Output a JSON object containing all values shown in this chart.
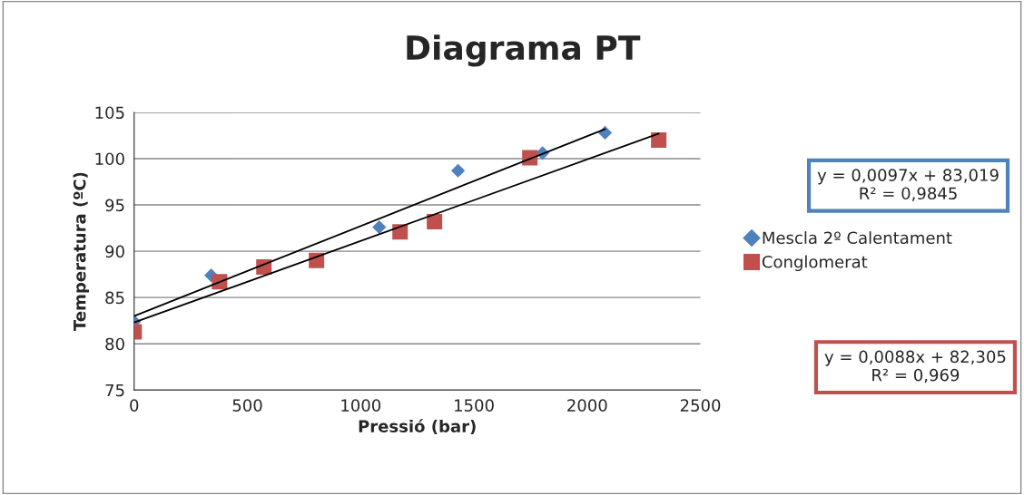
{
  "chart_data": {
    "type": "scatter",
    "title": "Diagrama PT",
    "xlabel": "Pressió (bar)",
    "ylabel": "Temperatura (ºC)",
    "xlim": [
      0,
      2500
    ],
    "xticks": [
      0,
      500,
      1000,
      1500,
      2000,
      2500
    ],
    "ylim": [
      75,
      105
    ],
    "yticks": [
      75,
      80,
      85,
      90,
      95,
      100,
      105
    ],
    "grid": "y",
    "legend": "right",
    "series": [
      {
        "name": "Mescla 2º Calentament",
        "color": "#4f81bd",
        "marker": "diamond",
        "x": [
          0,
          340,
          580,
          1082,
          1430,
          1803,
          2079
        ],
        "values": [
          82.4,
          87.4,
          null,
          92.6,
          98.7,
          100.6,
          102.8
        ]
      },
      {
        "name": "Conglomerat",
        "color": "#c0504d",
        "marker": "square",
        "x": [
          0,
          377,
          573,
          805,
          1174,
          1326,
          1747,
          2316
        ],
        "values": [
          81.3,
          86.7,
          88.3,
          89.0,
          92.1,
          93.2,
          100.1,
          102.0
        ]
      },
      {
        "type": "line",
        "color": "#000000",
        "marker": "none",
        "x": [
          0,
          2079
        ],
        "values": [
          83.0,
          103.2
        ]
      },
      {
        "type": "line",
        "color": "#000000",
        "marker": "none",
        "x": [
          0,
          2316
        ],
        "values": [
          82.3,
          102.7
        ]
      }
    ],
    "annotations": [
      "y = 0,0097x + 83,019\nR² = 0,9845",
      "y = 0,0088x + 82,305\nR² = 0,969"
    ]
  }
}
